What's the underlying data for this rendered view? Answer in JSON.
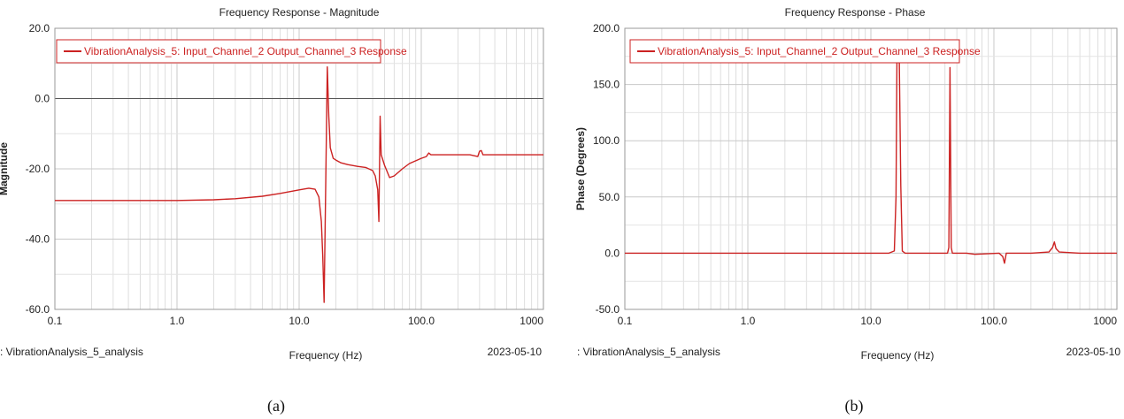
{
  "chart_data": [
    {
      "type": "line",
      "caption": "(a)",
      "title": "Frequency Response - Magnitude",
      "xlabel": "Frequency (Hz)",
      "ylabel": "Magnitude",
      "xscale": "log",
      "xlim": [
        0.1,
        1000
      ],
      "ylim": [
        -60,
        20
      ],
      "xticks": [
        0.1,
        1,
        10,
        100,
        1000
      ],
      "xtick_labels": [
        "0.1",
        "1.0",
        "10.0",
        "100.0",
        "1000"
      ],
      "yticks": [
        20,
        0,
        -20,
        -40,
        -60
      ],
      "ytick_labels": [
        "20.0",
        "0.0",
        "-20.0",
        "-40.0",
        "-60.0"
      ],
      "grid": true,
      "zero_line": true,
      "legend_position": "top-left",
      "footer_left": ": VibrationAnalysis_5_analysis",
      "footer_right": "2023-05-10",
      "series": [
        {
          "name": "VibrationAnalysis_5: Input_Channel_2 Output_Channel_3 Response",
          "color": "#cc2222",
          "x": [
            0.1,
            0.5,
            1,
            2,
            3,
            5,
            7,
            10,
            12,
            13.5,
            14.5,
            15.2,
            15.6,
            16,
            16.5,
            17,
            17.5,
            18,
            19,
            20,
            22,
            25,
            30,
            35,
            40,
            42,
            44,
            45,
            46,
            47,
            48,
            50,
            55,
            60,
            70,
            80,
            100,
            110,
            115,
            120,
            150,
            200,
            250,
            290,
            300,
            310,
            320,
            400,
            500,
            700,
            1000
          ],
          "y": [
            -29,
            -29,
            -29,
            -28.8,
            -28.5,
            -27.8,
            -27,
            -26,
            -25.5,
            -25.8,
            -28,
            -35,
            -45,
            -58,
            -25,
            9,
            -5,
            -14,
            -17,
            -17.5,
            -18.3,
            -18.8,
            -19.3,
            -19.6,
            -20.5,
            -22,
            -26,
            -35,
            -5,
            -16,
            -17,
            -19,
            -22.5,
            -22,
            -20,
            -18.5,
            -17,
            -16.5,
            -15.5,
            -16,
            -16,
            -16,
            -16,
            -16.5,
            -15,
            -14.8,
            -16,
            -16,
            -16,
            -16,
            -16
          ]
        }
      ]
    },
    {
      "type": "line",
      "caption": "(b)",
      "title": "Frequency Response - Phase",
      "xlabel": "Frequency (Hz)",
      "ylabel": "Phase (Degrees)",
      "xscale": "log",
      "xlim": [
        0.1,
        1000
      ],
      "ylim": [
        -50,
        200
      ],
      "xticks": [
        0.1,
        1,
        10,
        100,
        1000
      ],
      "xtick_labels": [
        "0.1",
        "1.0",
        "10.0",
        "100.0",
        "1000"
      ],
      "yticks": [
        200,
        150,
        100,
        50,
        0,
        -50
      ],
      "ytick_labels": [
        "200.0",
        "150.0",
        "100.0",
        "50.0",
        "0.0",
        "-50.0"
      ],
      "grid": true,
      "legend_position": "top-left",
      "footer_left": ": VibrationAnalysis_5_analysis",
      "footer_right": "2023-05-10",
      "series": [
        {
          "name": "VibrationAnalysis_5: Input_Channel_2 Output_Channel_3 Response",
          "color": "#cc2222",
          "x": [
            0.1,
            1,
            10,
            14,
            15.5,
            16,
            16.3,
            17,
            17.5,
            18,
            19,
            30,
            42,
            43,
            44,
            45,
            46,
            60,
            70,
            110,
            118,
            122,
            126,
            140,
            200,
            280,
            300,
            310,
            320,
            340,
            500,
            1000
          ],
          "y": [
            0,
            0,
            0,
            0,
            2,
            50,
            178,
            178,
            60,
            2,
            0,
            0,
            0,
            5,
            165,
            5,
            0,
            0,
            -1,
            0,
            -3,
            -9,
            0,
            0,
            0,
            1,
            5,
            10,
            4,
            1,
            0,
            0
          ]
        }
      ]
    }
  ]
}
